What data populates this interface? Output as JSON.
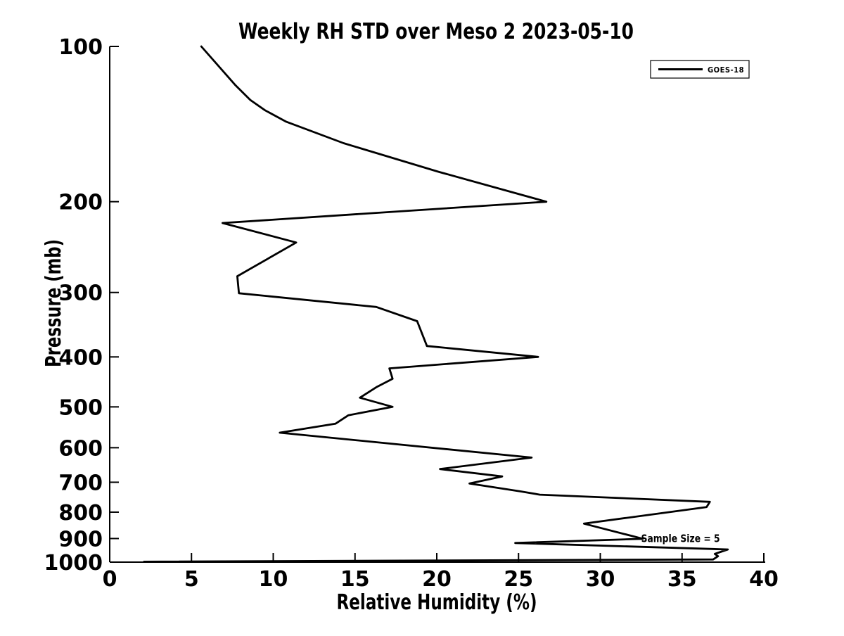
{
  "chart_data": {
    "type": "line",
    "title": "Weekly RH STD over Meso 2 2023-05-10",
    "xlabel": "Relative Humidity (%)",
    "ylabel": "Pressure (mb)",
    "xlim": [
      0,
      40
    ],
    "ylim": [
      100,
      1000
    ],
    "x_ticks": [
      0,
      5,
      10,
      15,
      20,
      25,
      30,
      35,
      40
    ],
    "y_ticks": [
      100,
      200,
      300,
      400,
      500,
      600,
      700,
      800,
      900,
      1000
    ],
    "y_scale": "log",
    "y_direction": "increasing-downward",
    "grid": false,
    "line_color": "#000000",
    "legend": {
      "position": "top-right",
      "entries": [
        "GOES-18"
      ]
    },
    "annotation": {
      "text": "Sample Size = 5",
      "rh": 32.5,
      "pressure": 915
    },
    "series": [
      {
        "name": "GOES-18",
        "points_format": [
          "relative_humidity_pct",
          "pressure_mb"
        ],
        "points": [
          [
            5.6,
            100
          ],
          [
            7.7,
            119
          ],
          [
            8.6,
            127
          ],
          [
            9.5,
            133
          ],
          [
            10.8,
            140
          ],
          [
            14.3,
            154
          ],
          [
            20.1,
            175
          ],
          [
            26.7,
            200
          ],
          [
            6.9,
            220
          ],
          [
            11.4,
            240
          ],
          [
            7.8,
            279
          ],
          [
            7.9,
            301
          ],
          [
            16.3,
            320
          ],
          [
            18.8,
            341
          ],
          [
            19.4,
            381
          ],
          [
            26.2,
            400
          ],
          [
            17.1,
            421
          ],
          [
            17.3,
            441
          ],
          [
            16.3,
            458
          ],
          [
            15.3,
            480
          ],
          [
            17.3,
            500
          ],
          [
            14.6,
            519
          ],
          [
            13.8,
            539
          ],
          [
            10.4,
            561
          ],
          [
            25.8,
            627
          ],
          [
            20.2,
            660
          ],
          [
            24.0,
            682
          ],
          [
            22.0,
            704
          ],
          [
            25.1,
            729
          ],
          [
            26.3,
            740
          ],
          [
            36.7,
            764
          ],
          [
            36.5,
            782
          ],
          [
            29.0,
            842
          ],
          [
            32.6,
            901
          ],
          [
            24.8,
            918
          ],
          [
            37.8,
            945
          ],
          [
            37.0,
            964
          ],
          [
            37.2,
            974
          ],
          [
            36.9,
            988
          ],
          [
            2.1,
            998
          ]
        ]
      }
    ]
  }
}
